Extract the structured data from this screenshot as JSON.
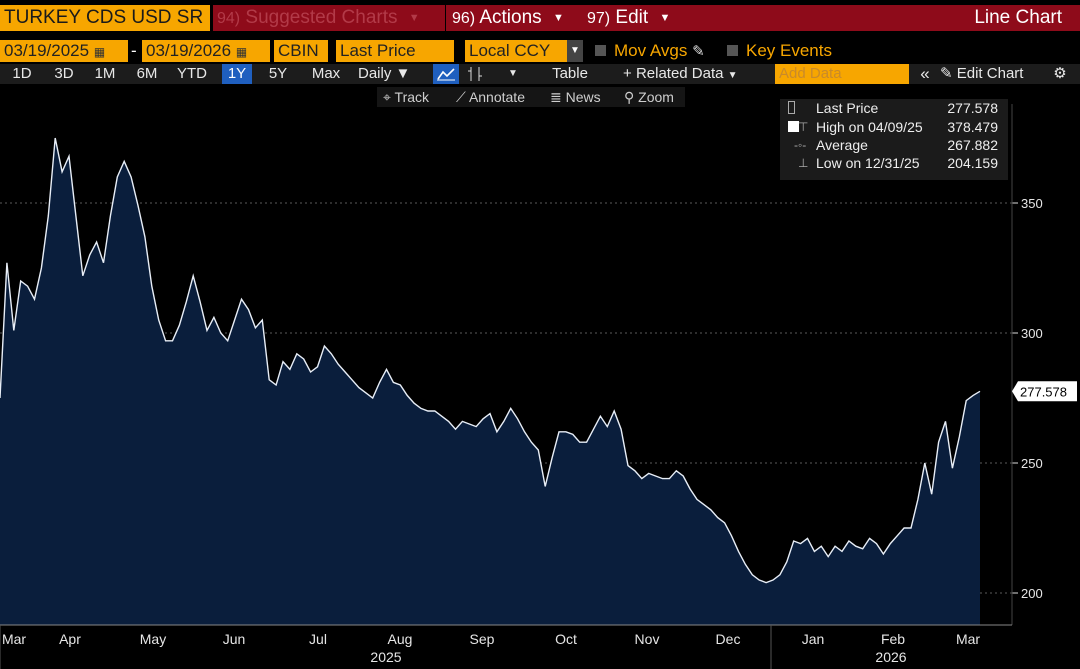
{
  "toolbar1": {
    "security": "TURKEY CDS USD SR",
    "suggested": {
      "num": "94)",
      "label": "Suggested Charts"
    },
    "actions": {
      "num": "96)",
      "label": "Actions"
    },
    "edit": {
      "num": "97)",
      "label": "Edit"
    },
    "chart_type": "Line Chart"
  },
  "toolbar2": {
    "start_date": "03/19/2025",
    "end_date": "03/19/2026",
    "date_sep": "-",
    "source": "CBIN",
    "field": "Last Price",
    "currency": "Local CCY",
    "mov_avgs": "Mov Avgs",
    "key_events": "Key Events"
  },
  "toolbar3": {
    "ranges": [
      "1D",
      "3D",
      "1M",
      "6M",
      "YTD",
      "1Y",
      "5Y",
      "Max"
    ],
    "active_range": "1Y",
    "periodicity": "Daily",
    "table": "Table",
    "related": "Related Data",
    "add_data_placeholder": "Add Data",
    "edit_chart": "Edit Chart"
  },
  "tools": {
    "track": "Track",
    "annotate": "Annotate",
    "news": "News",
    "zoom": "Zoom"
  },
  "legend": {
    "last": {
      "label": "Last Price",
      "value": "277.578"
    },
    "high": {
      "label": "High on 04/09/25",
      "value": "378.479"
    },
    "avg": {
      "label": "Average",
      "value": "267.882"
    },
    "low": {
      "label": "Low on 12/31/25",
      "value": "204.159"
    }
  },
  "colors": {
    "orange": "#f7a600",
    "red_tab": "#8e0b1a",
    "area_fill": "#0a1e3c",
    "line": "#e8eef7",
    "active_blue": "#1f5fbf"
  },
  "chart_data": {
    "type": "area",
    "title": "TURKEY CDS USD SR",
    "series": [
      {
        "name": "Last Price",
        "last": 277.578
      }
    ],
    "ylim": [
      190,
      385
    ],
    "yticks": [
      200,
      250,
      300,
      350
    ],
    "last_label": "277.578",
    "xmonths": [
      "Mar",
      "Apr",
      "May",
      "Jun",
      "Jul",
      "Aug",
      "Sep",
      "Oct",
      "Nov",
      "Dec",
      "Jan",
      "Feb",
      "Mar"
    ],
    "years": [
      "2025",
      "2026"
    ],
    "y": [
      275,
      327,
      301,
      320,
      318,
      313,
      325,
      345,
      375,
      362,
      368,
      345,
      322,
      330,
      335,
      327,
      345,
      360,
      366,
      360,
      349,
      337,
      318,
      305,
      297,
      297,
      303,
      312,
      322,
      312,
      301,
      306,
      300,
      297,
      305,
      313,
      309,
      302,
      305,
      282,
      280,
      289,
      286,
      292,
      290,
      285,
      287,
      295,
      292,
      288,
      285,
      282,
      279,
      277,
      275,
      281,
      286,
      281,
      280,
      276,
      273,
      271,
      270,
      270,
      268,
      266,
      263,
      266,
      265,
      264,
      267,
      269,
      262,
      266,
      271,
      267,
      262,
      258,
      255,
      241,
      252,
      262,
      262,
      261,
      258,
      258,
      263,
      268,
      264,
      270,
      263,
      249,
      247,
      244,
      246,
      245,
      244,
      244,
      247,
      245,
      240,
      236,
      234,
      232,
      229,
      227,
      222,
      216,
      211,
      207,
      205,
      204,
      205,
      207,
      212,
      220,
      219,
      221,
      216,
      218,
      214,
      218,
      216,
      220,
      218,
      217,
      221,
      219,
      215,
      219,
      222,
      225,
      225,
      236,
      250,
      238,
      258,
      266,
      248,
      260,
      274,
      276,
      277.578
    ]
  }
}
